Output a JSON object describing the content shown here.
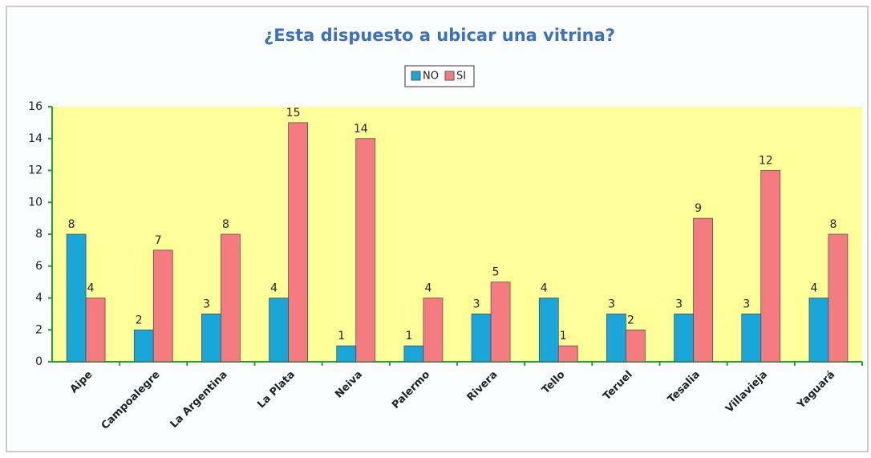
{
  "chart_data": {
    "type": "bar",
    "title": "¿Esta dispuesto a ubicar una vitrina?",
    "categories": [
      "Aipe",
      "Campoalegre",
      "La Argentina",
      "La Plata",
      "Neiva",
      "Palermo",
      "Rivera",
      "Tello",
      "Teruel",
      "Tesalia",
      "Villavieja",
      "Yaguará"
    ],
    "series": [
      {
        "name": "NO",
        "color": "#1aa6d8",
        "values": [
          8,
          2,
          3,
          4,
          1,
          1,
          3,
          4,
          3,
          3,
          3,
          4
        ]
      },
      {
        "name": "SI",
        "color": "#f47c80",
        "values": [
          4,
          7,
          8,
          15,
          14,
          4,
          5,
          1,
          2,
          9,
          12,
          8
        ]
      }
    ],
    "ylim": [
      0,
      16
    ],
    "yticks": [
      0,
      2,
      4,
      6,
      8,
      10,
      12,
      14,
      16
    ],
    "plot_background": "#ffff99",
    "axis_color": "#20a030"
  }
}
